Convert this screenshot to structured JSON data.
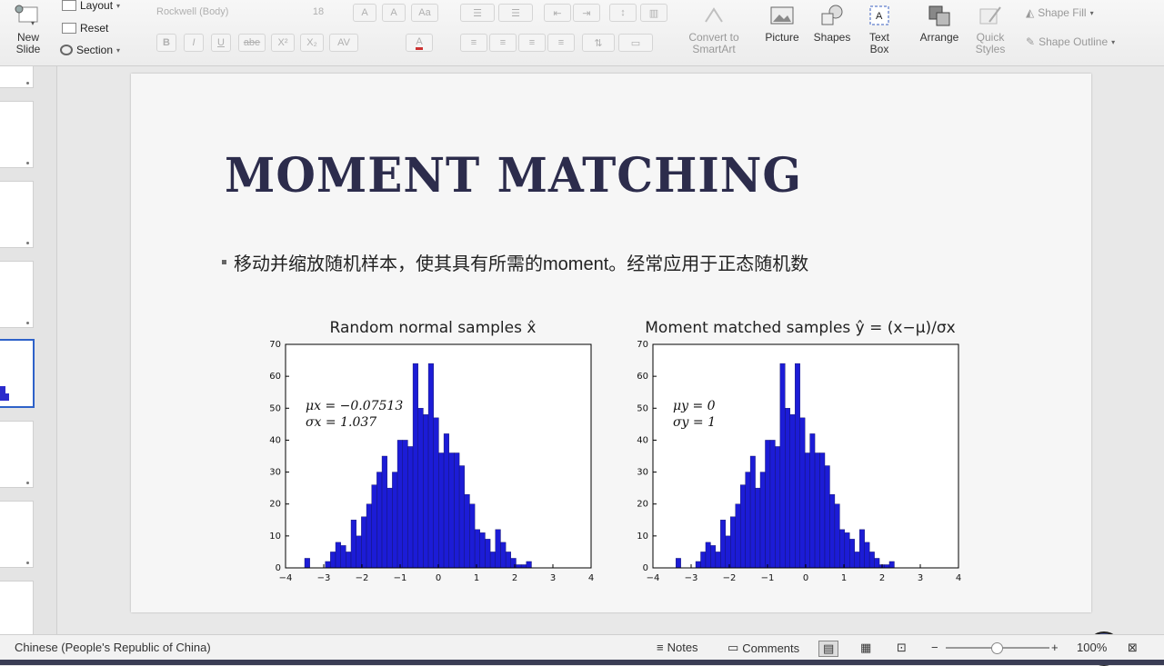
{
  "ribbon": {
    "new_slide": [
      "New",
      "Slide"
    ],
    "layout": "Layout",
    "reset": "Reset",
    "section": "Section",
    "font_name": "Rockwell (Body)",
    "font_size": "18",
    "align_text_labels": [
      "A",
      "A",
      "Aa"
    ],
    "format_labels": [
      "B",
      "I",
      "U",
      "abe",
      "X²",
      "X₂",
      "AV",
      "A"
    ],
    "convert_smartart": [
      "Convert to",
      "SmartArt"
    ],
    "picture": "Picture",
    "shapes": "Shapes",
    "text_box": [
      "Text",
      "Box"
    ],
    "text_box_icon_letter": "A",
    "arrange": "Arrange",
    "quick_styles": [
      "Quick",
      "Styles"
    ],
    "shape_fill": "Shape Fill",
    "shape_outline": "Shape Outline"
  },
  "slide": {
    "title": "MOMENT MATCHING",
    "bullet": "移动并缩放随机样本，使其具有所需的moment。经常应用于正态随机数"
  },
  "chart_data": [
    {
      "type": "bar",
      "title": "Random normal samples x̂",
      "annotation": [
        "μx = −0.07513",
        "σx = 1.037"
      ],
      "xlim": [
        -4,
        4
      ],
      "ylim": [
        0,
        70
      ],
      "xticks": [
        "−4",
        "−3",
        "−2",
        "−1",
        "0",
        "1",
        "2",
        "3",
        "4"
      ],
      "yticks": [
        "0",
        "10",
        "20",
        "30",
        "40",
        "50",
        "60",
        "70"
      ],
      "bin_start": -3.5,
      "bin_width": 0.135,
      "values": [
        3,
        0,
        0,
        0,
        2,
        5,
        8,
        7,
        5,
        15,
        10,
        16,
        20,
        26,
        30,
        35,
        25,
        30,
        40,
        40,
        38,
        64,
        50,
        48,
        64,
        47,
        36,
        42,
        36,
        36,
        32,
        23,
        20,
        12,
        11,
        9,
        5,
        12,
        8,
        5,
        3,
        1,
        1,
        2
      ],
      "bar_color": "#1c1cd6"
    },
    {
      "type": "bar",
      "title": "Moment matched samples ŷ = (x−μ)/σx",
      "annotation": [
        "μy = 0",
        "σy = 1"
      ],
      "xlim": [
        -4,
        4
      ],
      "ylim": [
        0,
        70
      ],
      "xticks": [
        "−4",
        "−3",
        "−2",
        "−1",
        "0",
        "1",
        "2",
        "3",
        "4"
      ],
      "yticks": [
        "0",
        "10",
        "20",
        "30",
        "40",
        "50",
        "60",
        "70"
      ],
      "bin_start": -3.4,
      "bin_width": 0.13,
      "values": [
        3,
        0,
        0,
        0,
        2,
        5,
        8,
        7,
        5,
        15,
        10,
        16,
        20,
        26,
        30,
        35,
        25,
        30,
        40,
        40,
        38,
        64,
        50,
        48,
        64,
        47,
        36,
        42,
        36,
        36,
        32,
        23,
        20,
        12,
        11,
        9,
        5,
        12,
        8,
        5,
        3,
        1,
        1,
        2
      ],
      "bar_color": "#1c1cd6"
    }
  ],
  "status": {
    "language": "Chinese (People's Republic of China)",
    "notes": "Notes",
    "comments": "Comments",
    "zoom": "100%"
  }
}
